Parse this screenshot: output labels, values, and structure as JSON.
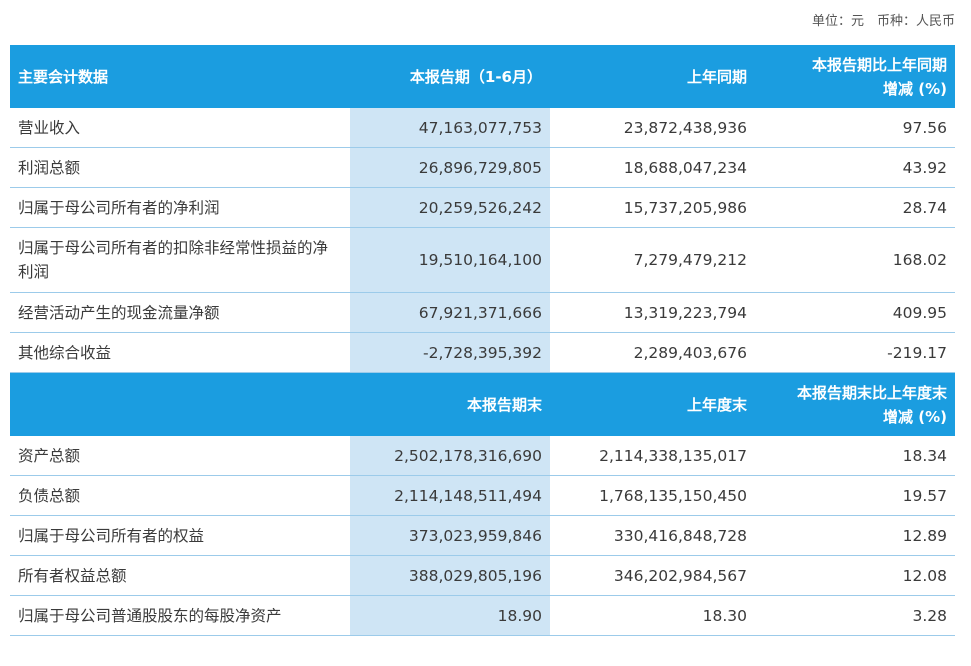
{
  "unit_note": "单位：元　币种：人民币",
  "table1": {
    "header": [
      "主要会计数据",
      "本报告期（1-6月）",
      "上年同期",
      "本报告期比上年同期\n增减 (%)"
    ],
    "rows": [
      [
        "营业收入",
        "47,163,077,753",
        "23,872,438,936",
        "97.56"
      ],
      [
        "利润总额",
        "26,896,729,805",
        "18,688,047,234",
        "43.92"
      ],
      [
        "归属于母公司所有者的净利润",
        "20,259,526,242",
        "15,737,205,986",
        "28.74"
      ],
      [
        "归属于母公司所有者的扣除非经常性损益的净利润",
        "19,510,164,100",
        "7,279,479,212",
        "168.02"
      ],
      [
        "经营活动产生的现金流量净额",
        "67,921,371,666",
        "13,319,223,794",
        "409.95"
      ],
      [
        "其他综合收益",
        "-2,728,395,392",
        "2,289,403,676",
        "-219.17"
      ]
    ]
  },
  "table2": {
    "header": [
      "本报告期末",
      "上年度末",
      "本报告期末比上年度末\n增减 (%)"
    ],
    "rows": [
      [
        "资产总额",
        "2,502,178,316,690",
        "2,114,338,135,017",
        "18.34"
      ],
      [
        "负债总额",
        "2,114,148,511,494",
        "1,768,135,150,450",
        "19.57"
      ],
      [
        "归属于母公司所有者的权益",
        "373,023,959,846",
        "330,416,848,728",
        "12.89"
      ],
      [
        "所有者权益总额",
        "388,029,805,196",
        "346,202,984,567",
        "12.08"
      ],
      [
        "归属于母公司普通股股东的每股净资产",
        "18.90",
        "18.30",
        "3.28"
      ]
    ]
  }
}
